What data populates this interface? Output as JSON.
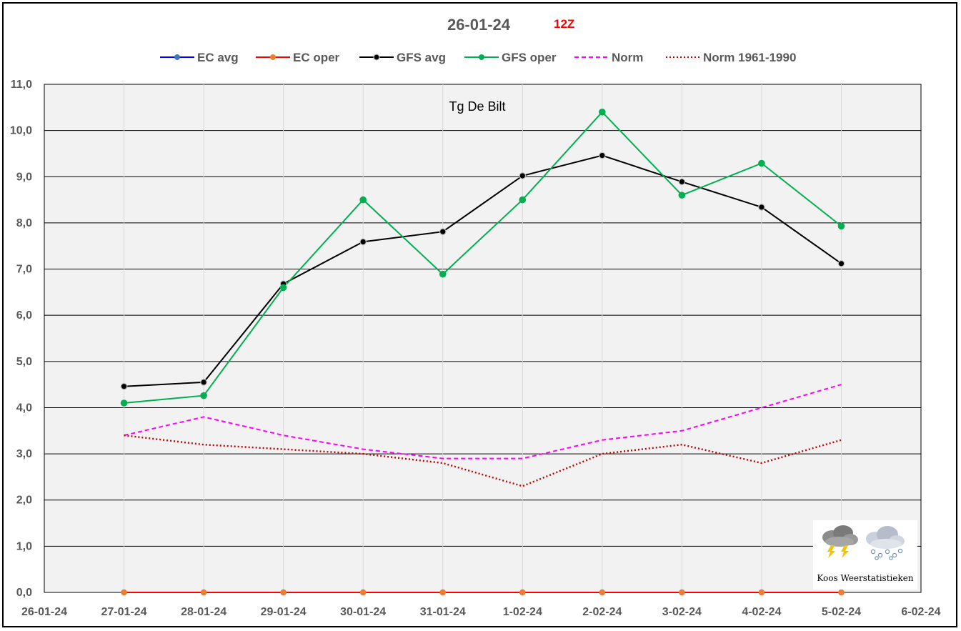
{
  "chart_data": {
    "type": "line",
    "title": "26-01-24",
    "run": "12Z",
    "annotation": "Tg De Bilt",
    "x_tick_labels": [
      "26-01-24",
      "27-01-24",
      "28-01-24",
      "29-01-24",
      "30-01-24",
      "31-01-24",
      "1-02-24",
      "2-02-24",
      "3-02-24",
      "4-02-24",
      "5-02-24",
      "6-02-24"
    ],
    "y_tick_labels": [
      "0,0",
      "1,0",
      "2,0",
      "3,0",
      "4,0",
      "5,0",
      "6,0",
      "7,0",
      "8,0",
      "9,0",
      "10,0",
      "11,0"
    ],
    "ylim": [
      0,
      11
    ],
    "grid": "horizontal",
    "legend_position": "top",
    "series": [
      {
        "name": "EC avg",
        "color": "#4472c4",
        "line_color": "#0000ff",
        "style": "solid",
        "marker": true,
        "values": [
          0,
          0,
          0,
          0,
          0,
          0,
          0,
          0,
          0,
          0
        ]
      },
      {
        "name": "EC oper",
        "color": "#ed7d31",
        "line_color": "#ff0000",
        "style": "solid",
        "marker": true,
        "values": [
          0,
          0,
          0,
          0,
          0,
          0,
          0,
          0,
          0,
          0
        ]
      },
      {
        "name": "GFS avg",
        "color": "#000000",
        "line_color": "#000000",
        "style": "solid",
        "marker": true,
        "values": [
          4.46,
          4.55,
          6.68,
          7.59,
          7.81,
          9.02,
          9.46,
          8.89,
          8.34,
          7.12
        ]
      },
      {
        "name": "GFS oper",
        "color": "#00b050",
        "line_color": "#00b050",
        "style": "solid",
        "marker": true,
        "values": [
          4.1,
          4.26,
          6.6,
          8.5,
          6.89,
          8.5,
          10.4,
          8.6,
          9.29,
          7.93
        ]
      },
      {
        "name": "Norm",
        "color": "#ff00ff",
        "line_color": "#ff00ff",
        "style": "dashed",
        "marker": false,
        "values": [
          3.4,
          3.8,
          3.4,
          3.1,
          2.9,
          2.9,
          3.3,
          3.5,
          4.0,
          4.5
        ]
      },
      {
        "name": "Norm 1961-1990",
        "color": "#c00000",
        "line_color": "#c00000",
        "style": "dotted",
        "marker": false,
        "values": [
          3.4,
          3.2,
          3.1,
          3.0,
          2.8,
          2.3,
          3.0,
          3.2,
          2.8,
          3.3
        ]
      }
    ]
  },
  "logo": {
    "text": "Koos Weerstatistieken",
    "icons": [
      "thunderstorm-cloud-icon",
      "snow-cloud-icon"
    ]
  }
}
